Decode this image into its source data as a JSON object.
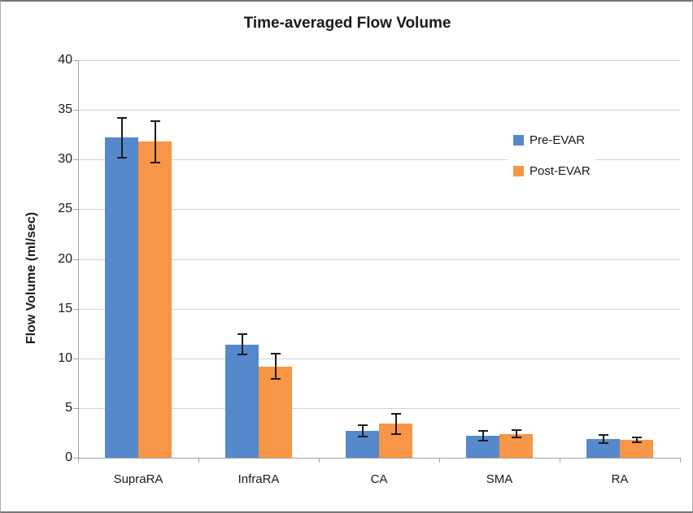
{
  "chart": {
    "title": "Time-averaged Flow Volume",
    "ylabel": "Flow Volume (ml/sec)"
  },
  "chart_data": {
    "type": "bar",
    "title": "Time-averaged Flow Volume",
    "xlabel": "",
    "ylabel": "Flow Volume (ml/sec)",
    "categories": [
      "SupraRA",
      "InfraRA",
      "CA",
      "SMA",
      "RA"
    ],
    "series": [
      {
        "name": "Pre-EVAR",
        "color": "#5589CB",
        "values": [
          32.2,
          11.4,
          2.7,
          2.2,
          1.9
        ],
        "errors": [
          2.0,
          1.0,
          0.6,
          0.5,
          0.4
        ]
      },
      {
        "name": "Post-EVAR",
        "color": "#F79646",
        "values": [
          31.8,
          9.2,
          3.4,
          2.4,
          1.8
        ],
        "errors": [
          2.1,
          1.3,
          1.0,
          0.35,
          0.27
        ]
      }
    ],
    "ylim": [
      0,
      40
    ],
    "yticks": [
      0,
      5,
      10,
      15,
      20,
      25,
      30,
      35,
      40
    ],
    "grid": true,
    "error_bars": true,
    "legend_position": "upper-right-inside"
  },
  "colors": {
    "grid": "#D3D3D3",
    "axis": "#A3A3A3",
    "error_bar": "#1C1C1C",
    "text": "#1A1A1A",
    "background": "#FFFFFF"
  }
}
